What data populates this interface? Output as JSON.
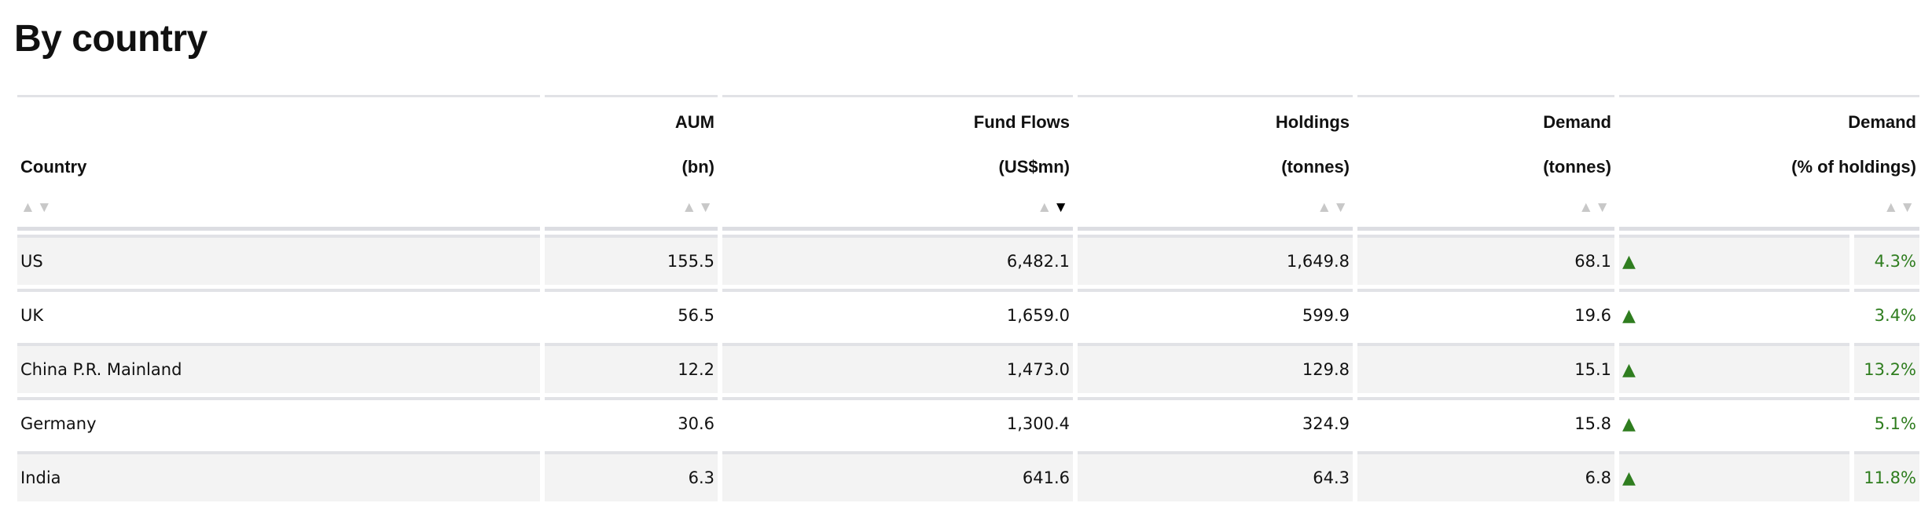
{
  "title": "By country",
  "colors": {
    "positive": "#2f7d1f",
    "sort_inactive": "#c8c8c8",
    "sort_active": "#000000",
    "stripe": "#f3f3f3"
  },
  "sort": {
    "column": "Fund Flows",
    "direction": "descending"
  },
  "columns": [
    {
      "line1": "",
      "line2": "Country"
    },
    {
      "line1": "AUM",
      "line2": "(bn)"
    },
    {
      "line1": "Fund Flows",
      "line2": "(US$mn)"
    },
    {
      "line1": "Holdings",
      "line2": "(tonnes)"
    },
    {
      "line1": "Demand",
      "line2": "(tonnes)"
    },
    {
      "line1": "Demand",
      "line2": "(% of holdings)"
    }
  ],
  "sort_up": "▲",
  "sort_down": "▼",
  "trend_icon": "▲",
  "rows": [
    {
      "country": "US",
      "aum": "155.5",
      "flows": "6,482.1",
      "holdings": "1,649.8",
      "demand": "68.1",
      "trend": "up",
      "pct": "4.3%"
    },
    {
      "country": "UK",
      "aum": "56.5",
      "flows": "1,659.0",
      "holdings": "599.9",
      "demand": "19.6",
      "trend": "up",
      "pct": "3.4%"
    },
    {
      "country": "China P.R. Mainland",
      "aum": "12.2",
      "flows": "1,473.0",
      "holdings": "129.8",
      "demand": "15.1",
      "trend": "up",
      "pct": "13.2%"
    },
    {
      "country": "Germany",
      "aum": "30.6",
      "flows": "1,300.4",
      "holdings": "324.9",
      "demand": "15.8",
      "trend": "up",
      "pct": "5.1%"
    },
    {
      "country": "India",
      "aum": "6.3",
      "flows": "641.6",
      "holdings": "64.3",
      "demand": "6.8",
      "trend": "up",
      "pct": "11.8%"
    }
  ]
}
